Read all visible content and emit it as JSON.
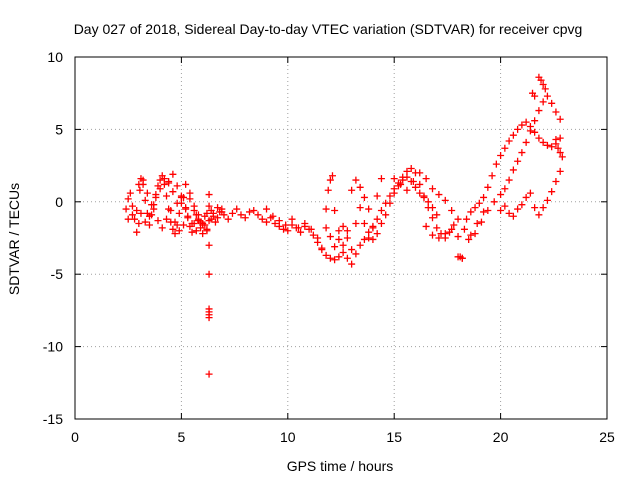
{
  "chart_data": {
    "type": "scatter",
    "title": "Day 027 of 2018, Sidereal Day-to-day VTEC variation (SDTVAR) for receiver cpvg",
    "xlabel": "GPS time / hours",
    "ylabel": "SDTVAR / TECUs",
    "xlim": [
      0,
      25
    ],
    "ylim": [
      -15,
      10
    ],
    "xticks": [
      0,
      5,
      10,
      15,
      20,
      25
    ],
    "yticks": [
      -15,
      -10,
      -5,
      0,
      5,
      10
    ],
    "xtick_labels": [
      "0",
      "5",
      "10",
      "15",
      "20",
      "25"
    ],
    "ytick_labels": [
      "-15",
      "-10",
      "-5",
      "0",
      "5",
      "10"
    ],
    "grid": true,
    "marker": "+",
    "color": "#ff0000",
    "series": [
      {
        "name": "SDTVAR",
        "x": [
          2.4,
          2.5,
          2.6,
          2.7,
          2.8,
          2.9,
          3.0,
          3.05,
          3.1,
          3.2,
          3.3,
          3.4,
          3.5,
          3.6,
          3.7,
          3.8,
          3.9,
          4.0,
          4.1,
          4.2,
          4.3,
          4.4,
          4.5,
          4.6,
          4.7,
          4.8,
          4.9,
          5.0,
          5.1,
          5.2,
          5.3,
          5.4,
          5.5,
          5.6,
          5.7,
          5.8,
          5.9,
          6.0,
          6.1,
          6.2,
          6.3,
          6.4,
          6.5,
          6.6,
          6.7,
          6.8,
          6.9,
          7.0,
          7.2,
          7.4,
          7.6,
          7.8,
          8.0,
          8.2,
          8.4,
          8.6,
          8.8,
          9.0,
          9.2,
          9.4,
          9.6,
          9.8,
          10.0,
          10.2,
          10.4,
          10.6,
          10.8,
          11.0,
          11.2,
          11.4,
          11.6,
          11.8,
          12.0,
          12.2,
          12.4,
          12.6,
          12.8,
          13.0,
          13.2,
          13.4,
          13.6,
          13.8,
          14.0,
          14.2,
          14.4,
          14.6,
          14.8,
          15.0,
          15.2,
          15.4,
          15.6,
          15.8,
          16.0,
          16.2,
          16.4,
          16.6,
          16.8,
          17.0,
          17.2,
          17.4,
          17.6,
          17.8,
          18.0,
          18.2,
          18.4,
          18.6,
          18.8,
          19.0,
          19.2,
          19.4,
          19.6,
          19.8,
          20.0,
          20.2,
          20.4,
          20.6,
          20.8,
          21.0,
          21.2,
          21.4,
          21.6,
          21.8,
          22.0,
          22.2,
          22.4,
          22.6,
          22.8,
          2.5,
          2.7,
          2.9,
          3.1,
          3.3,
          3.5,
          3.7,
          3.9,
          4.1,
          4.3,
          4.5,
          4.7,
          4.9,
          5.1,
          5.3,
          5.5,
          5.7,
          5.9,
          6.1,
          6.3,
          6.5,
          6.7,
          6.9,
          3.0,
          3.2,
          3.4,
          3.6,
          3.8,
          4.0,
          4.2,
          4.4,
          4.6,
          4.8,
          5.0,
          5.2,
          5.4,
          5.6,
          5.8,
          6.0,
          6.2,
          6.4,
          4.4,
          4.6,
          4.8,
          5.0,
          5.2,
          5.4,
          5.6,
          5.8,
          6.0,
          6.2,
          6.3,
          6.3,
          6.3,
          6.3,
          6.3,
          6.3,
          6.3,
          6.3,
          9.0,
          9.3,
          9.6,
          9.9,
          10.2,
          10.5,
          10.8,
          11.1,
          11.4,
          11.6,
          11.8,
          11.9,
          12.0,
          12.1,
          12.2,
          12.4,
          12.6,
          12.8,
          13.0,
          13.2,
          13.4,
          13.6,
          13.8,
          14.0,
          14.2,
          14.4,
          11.8,
          12.0,
          12.2,
          12.4,
          12.6,
          12.8,
          13.0,
          13.2,
          13.4,
          13.6,
          13.8,
          14.0,
          14.2,
          14.4,
          14.6,
          14.8,
          15.0,
          15.2,
          15.4,
          15.6,
          15.8,
          16.0,
          16.2,
          16.4,
          16.6,
          16.8,
          17.0,
          15.0,
          15.3,
          15.6,
          15.9,
          16.2,
          16.5,
          16.8,
          17.1,
          17.4,
          17.7,
          18.0,
          18.3,
          18.6,
          18.9,
          19.2,
          16.5,
          16.8,
          17.1,
          17.4,
          17.7,
          18.0,
          18.1,
          18.2,
          18.5,
          18.8,
          19.1,
          19.4,
          19.7,
          20.0,
          20.2,
          20.4,
          20.6,
          20.8,
          21.0,
          21.2,
          21.4,
          21.6,
          21.8,
          22.0,
          22.2,
          22.4,
          22.6,
          22.8,
          20.0,
          20.2,
          20.4,
          20.6,
          20.8,
          21.0,
          21.2,
          21.4,
          21.6,
          21.8,
          22.0,
          22.2,
          22.4,
          22.6,
          22.8,
          21.8,
          21.9,
          22.0,
          22.1,
          21.5,
          21.6,
          22.6,
          22.7,
          22.8,
          22.9
        ],
        "y": [
          -0.5,
          0.2,
          0.6,
          -0.3,
          -1.2,
          -2.1,
          -1.5,
          0.8,
          1.6,
          1.2,
          0.1,
          -0.8,
          -1.6,
          -0.9,
          -0.2,
          0.5,
          1.1,
          1.5,
          1.8,
          1.2,
          0.4,
          -0.5,
          -1.4,
          -1.9,
          -2.2,
          -1.6,
          -0.8,
          -0.1,
          0.3,
          -0.4,
          -1.1,
          -1.7,
          -2.1,
          -1.5,
          -0.9,
          -1.3,
          -1.8,
          -2.2,
          -1.6,
          -0.8,
          -0.3,
          -0.6,
          -1.0,
          -1.4,
          -1.1,
          -0.7,
          -0.5,
          -0.9,
          -1.2,
          -0.8,
          -0.5,
          -0.9,
          -1.1,
          -0.7,
          -0.6,
          -0.9,
          -1.2,
          -1.4,
          -1.1,
          -1.5,
          -1.7,
          -1.9,
          -2.0,
          -1.6,
          -1.8,
          -2.1,
          -1.7,
          -1.9,
          -2.3,
          -2.8,
          -3.3,
          -3.7,
          -3.9,
          -4.0,
          -3.8,
          -3.5,
          -3.9,
          -4.3,
          -3.6,
          -3.0,
          -2.6,
          -2.1,
          -1.7,
          -1.2,
          -0.6,
          -0.1,
          0.4,
          0.9,
          1.3,
          1.7,
          2.1,
          2.3,
          2.0,
          1.2,
          0.4,
          -0.4,
          -1.1,
          -1.8,
          -2.2,
          -2.5,
          -2.1,
          -1.6,
          -3.8,
          -3.9,
          -1.2,
          -0.7,
          -0.4,
          -0.1,
          0.3,
          1.0,
          1.8,
          2.6,
          3.2,
          3.7,
          4.2,
          4.6,
          5.0,
          5.3,
          5.5,
          5.2,
          4.8,
          4.4,
          4.1,
          3.9,
          3.8,
          4.0,
          4.4,
          -1.2,
          -0.9,
          -0.6,
          -0.8,
          -1.4,
          -1.0,
          -0.5,
          -1.3,
          -1.8,
          -1.2,
          -0.6,
          -1.4,
          -2.0,
          -1.6,
          -1.0,
          -1.5,
          -2.0,
          -1.4,
          -1.0,
          -1.3,
          -0.8,
          -0.4,
          -0.7,
          1.2,
          1.5,
          0.6,
          -0.2,
          0.3,
          0.9,
          1.6,
          1.3,
          0.7,
          -0.1,
          0.4,
          1.2,
          0.6,
          -0.3,
          -0.9,
          -1.5,
          -1.9,
          -1.2,
          1.4,
          1.9,
          1.1,
          0.3,
          -0.5,
          0.2,
          -0.6,
          -1.2,
          -1.6,
          -2.0,
          -3.0,
          -5.0,
          -7.4,
          -7.6,
          -7.8,
          -8.0,
          -11.9,
          0.5,
          -0.5,
          -1.0,
          -1.3,
          -1.6,
          -1.2,
          -1.8,
          -1.5,
          -1.9,
          -2.5,
          -3.2,
          -0.5,
          0.8,
          1.5,
          1.8,
          -0.6,
          -2.0,
          -3.0,
          -2.0,
          0.8,
          1.5,
          1.0,
          -1.5,
          -2.5,
          -1.8,
          0.4,
          1.6,
          -1.8,
          -2.4,
          -3.1,
          -2.6,
          -1.7,
          -2.5,
          -3.3,
          -1.5,
          -0.4,
          0.3,
          -0.5,
          -2.6,
          -2.2,
          -1.5,
          -0.9,
          -0.1,
          0.6,
          1.1,
          1.5,
          1.7,
          1.4,
          1.0,
          0.6,
          0.3,
          0.0,
          -0.4,
          -0.9,
          1.6,
          1.2,
          0.8,
          1.4,
          2.0,
          1.6,
          0.9,
          0.5,
          0.1,
          -0.6,
          -1.2,
          -1.9,
          -2.3,
          -1.5,
          -0.7,
          -1.7,
          -2.3,
          -2.5,
          -2.2,
          -1.9,
          -2.4,
          -3.8,
          -3.9,
          -2.6,
          -2.2,
          -1.4,
          -0.6,
          0.0,
          0.5,
          0.9,
          1.5,
          2.2,
          2.8,
          3.4,
          4.1,
          4.9,
          5.6,
          6.3,
          6.9,
          7.3,
          6.8,
          6.2,
          5.7,
          -0.6,
          -0.3,
          -0.8,
          -1.0,
          -0.5,
          -0.2,
          0.3,
          0.6,
          -0.4,
          -0.9,
          -0.4,
          0.1,
          0.7,
          1.4,
          2.1,
          8.6,
          8.4,
          8.1,
          7.8,
          7.5,
          7.3,
          4.3,
          3.7,
          3.4,
          3.1
        ]
      }
    ]
  }
}
